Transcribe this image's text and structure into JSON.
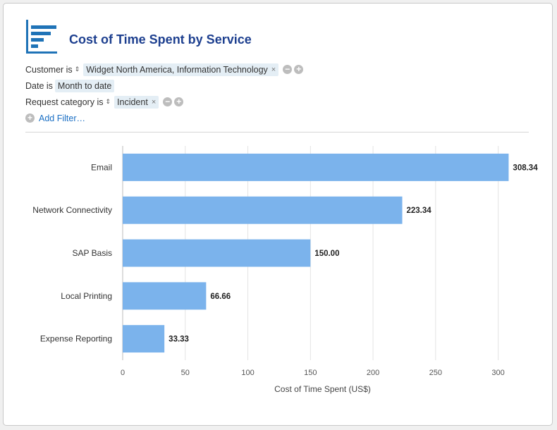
{
  "header": {
    "title": "Cost of Time Spent by Service",
    "icon": "bar-chart-report-icon"
  },
  "filters": [
    {
      "label": "Customer is",
      "sortable": true,
      "tokens": [
        "Widget North America, Information Technology"
      ],
      "removable": true,
      "controls": true
    },
    {
      "label": "Date is",
      "sortable": false,
      "tokens": [
        "Month to date"
      ],
      "removable": false,
      "controls": false
    },
    {
      "label": "Request category is",
      "sortable": true,
      "tokens": [
        "Incident"
      ],
      "removable": true,
      "controls": true
    }
  ],
  "add_filter_label": "Add Filter…",
  "colors": {
    "bar": "#7bb3ec",
    "title": "#1d3f8f",
    "link": "#1a6fc4"
  },
  "chart_data": {
    "type": "bar",
    "orientation": "horizontal",
    "categories": [
      "Email",
      "Network Connectivity",
      "SAP Basis",
      "Local Printing",
      "Expense Reporting"
    ],
    "values": [
      308.34,
      223.34,
      150.0,
      66.66,
      33.33
    ],
    "value_labels": [
      "308.34",
      "223.34",
      "150.00",
      "66.66",
      "33.33"
    ],
    "xlabel": "Cost of Time Spent (US$)",
    "ylabel": "",
    "xlim": [
      0,
      325
    ],
    "xticks": [
      0,
      50,
      100,
      150,
      200,
      250,
      300
    ],
    "grid": true
  }
}
